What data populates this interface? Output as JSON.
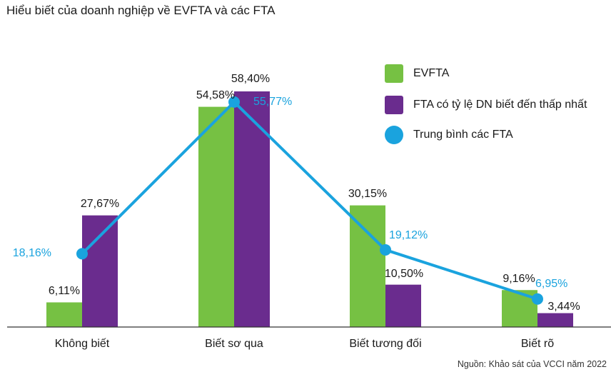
{
  "title": "Hiểu biết của doanh nghiệp về EVFTA và các FTA",
  "source": "Nguồn: Khảo sát của VCCI năm 2022",
  "colors": {
    "evfta": "#76c143",
    "fta_lowest": "#6a2c8e",
    "average": "#1aa3de",
    "axis": "#333333",
    "label": "#1a1a1a"
  },
  "legend": [
    {
      "label": "EVFTA",
      "color": "#76c143",
      "shape": "square"
    },
    {
      "label": "FTA có tỷ lệ DN biết đến thấp nhất",
      "color": "#6a2c8e",
      "shape": "square"
    },
    {
      "label": "Trung bình các FTA",
      "color": "#1aa3de",
      "shape": "circle"
    }
  ],
  "chart_data": {
    "type": "bar",
    "title": "Hiểu biết của doanh nghiệp về EVFTA và các FTA",
    "categories": [
      "Không biết",
      "Biết sơ qua",
      "Biết tương đối",
      "Biết rõ"
    ],
    "ylim": [
      0,
      62
    ],
    "grid": false,
    "legend_position": "top-right",
    "series": [
      {
        "name": "EVFTA",
        "type": "bar",
        "color": "#76c143",
        "values": [
          6.11,
          54.58,
          30.15,
          9.16
        ],
        "labels": [
          "6,11%",
          "54,58%",
          "30,15%",
          "9,16%"
        ]
      },
      {
        "name": "FTA có tỷ lệ DN biết đến thấp nhất",
        "type": "bar",
        "color": "#6a2c8e",
        "values": [
          27.67,
          58.4,
          10.5,
          3.44
        ],
        "labels": [
          "27,67%",
          "58,40%",
          "10,50%",
          "3,44%"
        ]
      },
      {
        "name": "Trung bình các FTA",
        "type": "line",
        "color": "#1aa3de",
        "values": [
          18.16,
          55.77,
          19.12,
          6.95
        ],
        "labels": [
          "18,16%",
          "55,77%",
          "19,12%",
          "6,95%"
        ]
      }
    ]
  }
}
